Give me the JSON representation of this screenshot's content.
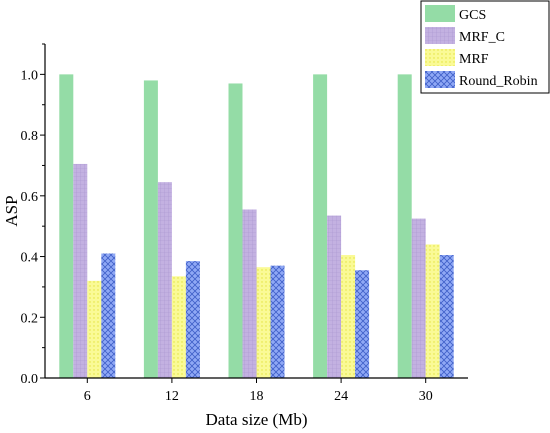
{
  "chart_data": {
    "type": "bar",
    "xlabel": "Data size (Mb)",
    "ylabel": "ASP",
    "categories": [
      "6",
      "12",
      "18",
      "24",
      "30"
    ],
    "ylim": [
      0,
      1.1
    ],
    "yticks": [
      "0.0",
      "0.2",
      "0.4",
      "0.6",
      "0.8",
      "1.0"
    ],
    "legend_position": "top-right",
    "grid": false,
    "series": [
      {
        "name": "GCS",
        "color": "#94dca6",
        "pattern": "solid",
        "values": [
          1.0,
          0.98,
          0.97,
          1.0,
          1.0
        ]
      },
      {
        "name": "MRF_C",
        "color": "#c3b1e1",
        "pattern": "grid",
        "values": [
          0.705,
          0.645,
          0.555,
          0.535,
          0.525
        ]
      },
      {
        "name": "MRF",
        "color": "#fafa96",
        "pattern": "dots",
        "values": [
          0.32,
          0.335,
          0.365,
          0.405,
          0.44
        ]
      },
      {
        "name": "Round_Robin",
        "color": "#8fa8f5",
        "pattern": "crosshatch",
        "values": [
          0.41,
          0.385,
          0.37,
          0.355,
          0.405
        ]
      }
    ]
  }
}
